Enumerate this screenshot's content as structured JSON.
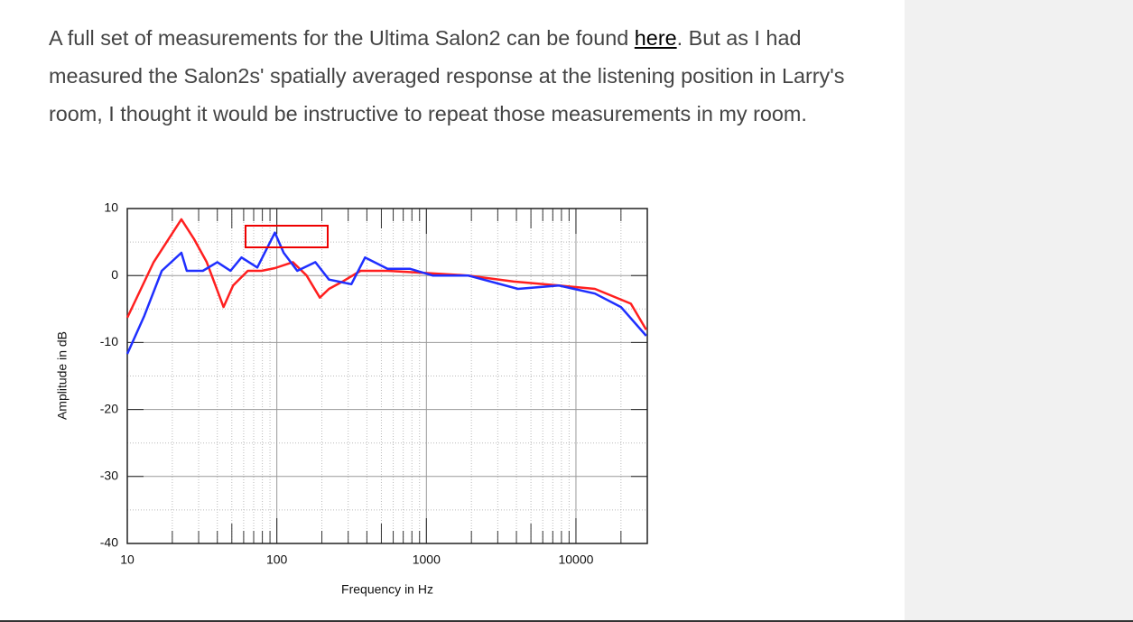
{
  "paragraph": {
    "before": "A full set of measurements for the Ultima Salon2 can be found ",
    "link": "here",
    "after": ". But as I had measured the Salon2s' spatially averaged response at the listening position in Larry's room, I thought it would be instructive to repeat those measurements in my room."
  },
  "chart_data": {
    "type": "line",
    "x_label": "Frequency in Hz",
    "y_label": "Amplitude in dB",
    "xscale": "log",
    "xlim": [
      10,
      30000
    ],
    "ylim": [
      -40,
      10
    ],
    "xticks": [
      10,
      100,
      1000,
      10000
    ],
    "yticks": [
      10,
      0,
      -10,
      -20,
      -30,
      -40
    ],
    "grid": true,
    "series": [
      {
        "color": "#ff1f1f",
        "x": [
          10,
          15,
          23,
          28,
          34,
          44,
          51,
          64,
          79,
          97,
          128,
          158,
          194,
          223,
          275,
          363,
          550,
          957,
          1900,
          3840,
          7700,
          13400,
          23300,
          29500
        ],
        "values": [
          -6.3,
          2.0,
          8.4,
          5.4,
          2.0,
          -4.7,
          -1.5,
          0.7,
          0.7,
          1.1,
          2.0,
          0.0,
          -3.3,
          -2.0,
          -0.9,
          0.7,
          0.7,
          0.4,
          0.0,
          -0.9,
          -1.5,
          -2.0,
          -4.2,
          -8.1
        ]
      },
      {
        "color": "#1f2fff",
        "x": [
          10,
          13,
          17,
          23,
          25,
          32,
          40,
          49,
          58,
          74,
          97,
          111,
          137,
          181,
          223,
          315,
          389,
          550,
          780,
          1100,
          1900,
          4100,
          7700,
          13400,
          20000,
          29500
        ],
        "values": [
          -11.7,
          -6.0,
          0.7,
          3.4,
          0.7,
          0.7,
          2.0,
          0.7,
          2.7,
          1.2,
          6.4,
          3.4,
          0.7,
          2.0,
          -0.6,
          -1.3,
          2.7,
          1.0,
          1.0,
          0.0,
          0.0,
          -2.0,
          -1.5,
          -2.7,
          -4.7,
          -9.0
        ]
      }
    ]
  }
}
